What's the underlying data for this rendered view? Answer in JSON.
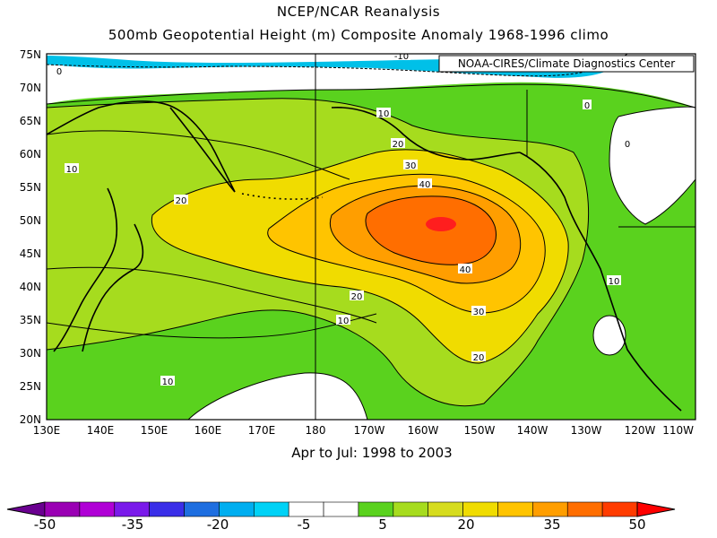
{
  "header": {
    "title": "NCEP/NCAR Reanalysis",
    "subtitle": "500mb Geopotential Height (m) Composite Anomaly 1968-1996 climo"
  },
  "map": {
    "credit": "NOAA-CIRES/Climate Diagnostics Center",
    "period": "Apr to Jul: 1998 to 2003",
    "lat_labels": [
      "75N",
      "70N",
      "65N",
      "60N",
      "55N",
      "50N",
      "45N",
      "40N",
      "35N",
      "30N",
      "25N",
      "20N"
    ],
    "lon_labels": [
      "130E",
      "140E",
      "150E",
      "160E",
      "170E",
      "180",
      "170W",
      "160W",
      "150W",
      "140W",
      "130W",
      "120W",
      "110W"
    ],
    "contour_labels": [
      "0",
      "10",
      "0",
      "0",
      "10",
      "20",
      "30",
      "40",
      "20",
      "40",
      "30",
      "20",
      "10",
      "20",
      "10",
      "10",
      "-10"
    ],
    "fill_colors": {
      "land_outline": "#000000",
      "c_neg10": "#00c0e8",
      "c_0": "#ffffff",
      "c_5": "#5ad21e",
      "c_10": "#a6dc1e",
      "c_20": "#f0dc00",
      "c_25": "#ffc400",
      "c_35": "#ff9e00",
      "c_40": "#ff6e00",
      "c_50": "#ff2a2a"
    }
  },
  "legend": {
    "labels": [
      "-50",
      "-35",
      "-20",
      "-5",
      "5",
      "20",
      "35",
      "50"
    ],
    "colors": [
      "#6a0090",
      "#9a00b4",
      "#b000d6",
      "#7a1aea",
      "#3a2ee8",
      "#1e6ee0",
      "#00aef0",
      "#00d2f6",
      "#ffffff",
      "#ffffff",
      "#5ad21e",
      "#a6dc1e",
      "#d6dc1e",
      "#f0dc00",
      "#ffc400",
      "#ff9e00",
      "#ff6e00",
      "#ff3c00",
      "#ff0000"
    ]
  }
}
